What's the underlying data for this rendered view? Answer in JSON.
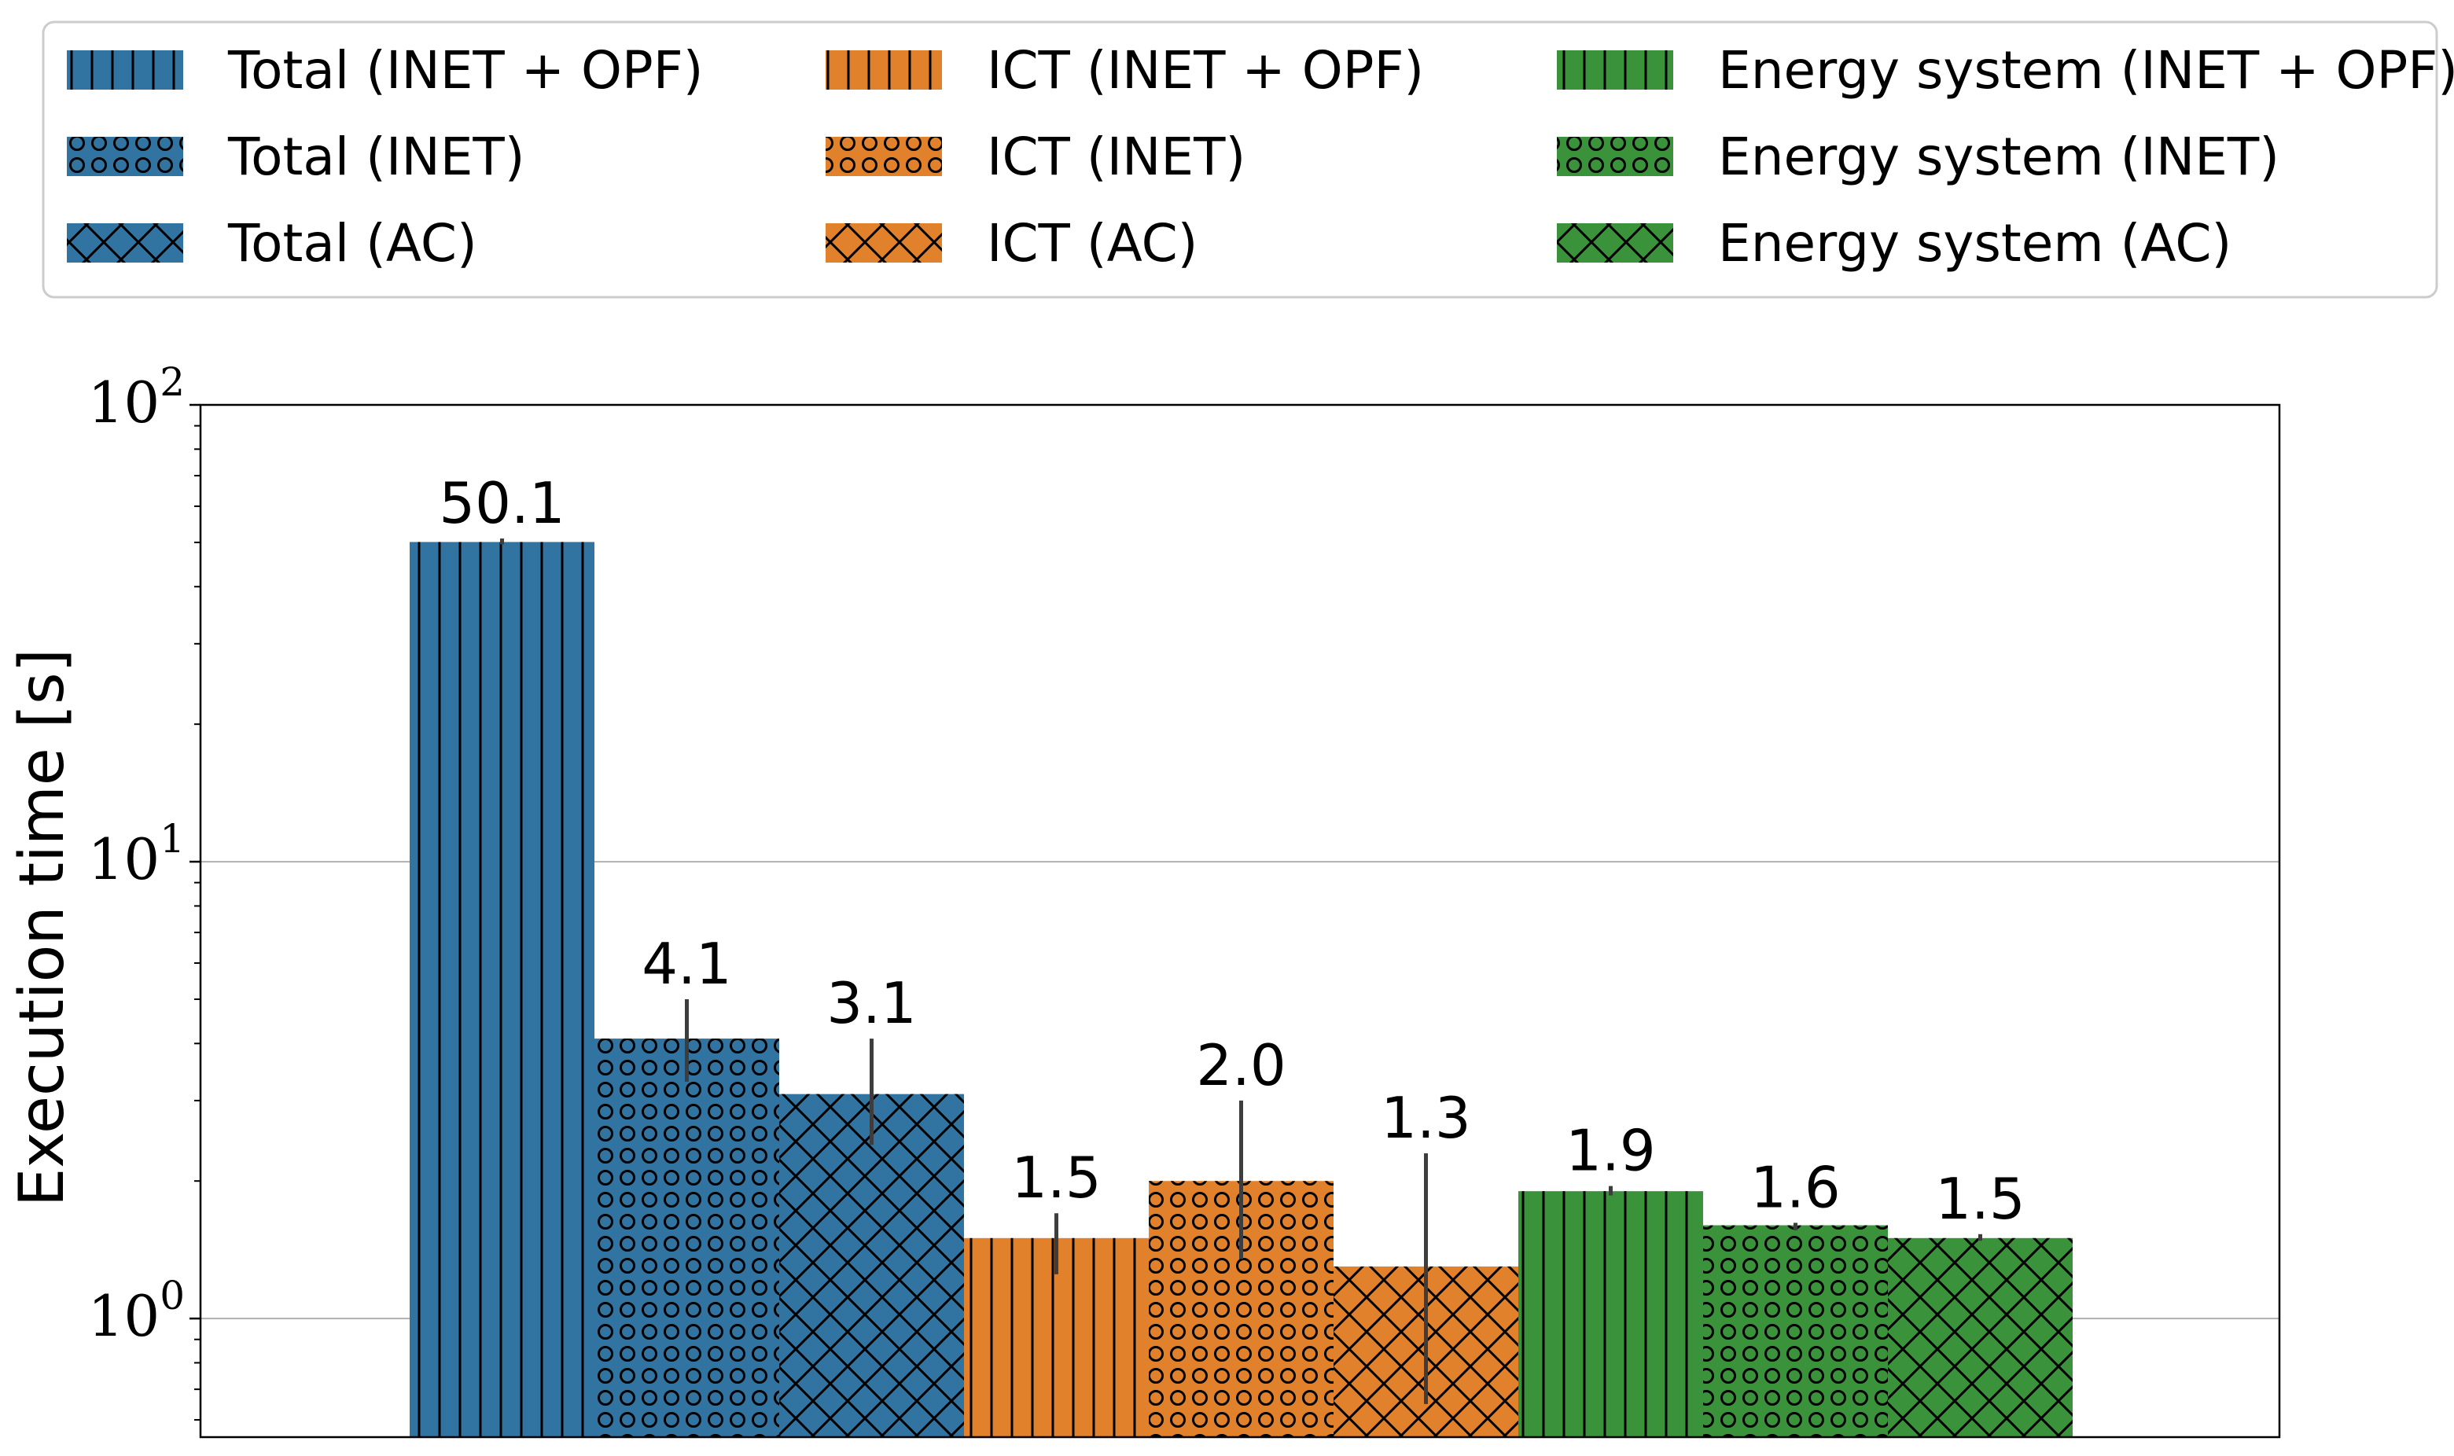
{
  "chart_data": {
    "type": "bar",
    "scale": "log",
    "ylabel": "Execution time [s]",
    "xlabel": "",
    "ylim": [
      0.55,
      100
    ],
    "yticks": [
      {
        "value": 1,
        "base": "10",
        "exp": "0"
      },
      {
        "value": 10,
        "base": "10",
        "exp": "1"
      },
      {
        "value": 100,
        "base": "10",
        "exp": "2"
      }
    ],
    "grid": "horizontal major",
    "legend_position": "top, above plot, 3 columns",
    "colors": {
      "blue": "#3274a1",
      "orange": "#e1812c",
      "green": "#3a923a"
    },
    "series": [
      {
        "name": "Total (INET + OPF)",
        "group": "blue",
        "hatch": "vertical",
        "value": 50.1,
        "label": "50.1",
        "err": [
          49.5,
          51.0
        ]
      },
      {
        "name": "Total (INET)",
        "group": "blue",
        "hatch": "circles",
        "value": 4.1,
        "label": "4.1",
        "err": [
          3.3,
          5.0
        ]
      },
      {
        "name": "Total (AC)",
        "group": "blue",
        "hatch": "cross",
        "value": 3.1,
        "label": "3.1",
        "err": [
          2.4,
          4.1
        ]
      },
      {
        "name": "ICT (INET + OPF)",
        "group": "orange",
        "hatch": "vertical",
        "value": 1.5,
        "label": "1.5",
        "err": [
          1.25,
          1.7
        ]
      },
      {
        "name": "ICT (INET)",
        "group": "orange",
        "hatch": "circles",
        "value": 2.0,
        "label": "2.0",
        "err": [
          1.35,
          3.0
        ]
      },
      {
        "name": "ICT (AC)",
        "group": "orange",
        "hatch": "cross",
        "value": 1.3,
        "label": "1.3",
        "err": [
          0.65,
          2.3
        ]
      },
      {
        "name": "Energy system (INET + OPF)",
        "group": "green",
        "hatch": "vertical",
        "value": 1.9,
        "label": "1.9",
        "err": [
          1.86,
          1.95
        ]
      },
      {
        "name": "Energy system (INET)",
        "group": "green",
        "hatch": "circles",
        "value": 1.6,
        "label": "1.6",
        "err": [
          1.56,
          1.62
        ]
      },
      {
        "name": "Energy system (AC)",
        "group": "green",
        "hatch": "cross",
        "value": 1.5,
        "label": "1.5",
        "err": [
          1.48,
          1.53
        ]
      }
    ]
  }
}
